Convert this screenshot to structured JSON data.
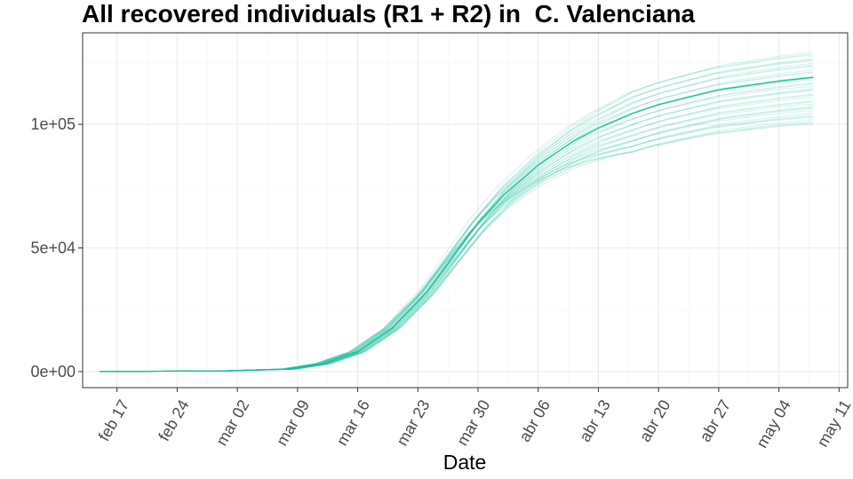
{
  "chart_data": {
    "type": "line",
    "title": "All recovered individuals (R1 + R2) in  C. Valenciana",
    "xlabel": "Date",
    "ylabel": "",
    "x_ticks": [
      "feb 17",
      "feb 24",
      "mar 02",
      "mar 09",
      "mar 16",
      "mar 23",
      "mar 30",
      "abr 06",
      "abr 13",
      "abr 20",
      "abr 27",
      "may 04",
      "may 11"
    ],
    "x_range": [
      "2020-02-13",
      "2020-05-12"
    ],
    "y_ticks": [
      "0e+00",
      "5e+04",
      "1e+05"
    ],
    "ylim": [
      -6500,
      137000
    ],
    "grid": true,
    "line_color": "#1abc9c",
    "series": [
      {
        "role": "central",
        "x": [
          "2020-02-15",
          "2020-03-01",
          "2020-03-08",
          "2020-03-12",
          "2020-03-16",
          "2020-03-20",
          "2020-03-24",
          "2020-03-27",
          "2020-03-30",
          "2020-04-02",
          "2020-04-06",
          "2020-04-10",
          "2020-04-13",
          "2020-04-17",
          "2020-04-20",
          "2020-04-24",
          "2020-04-27",
          "2020-05-01",
          "2020-05-04",
          "2020-05-08"
        ],
        "y": [
          0,
          300,
          1000,
          3200,
          8000,
          17500,
          32000,
          46000,
          60000,
          71500,
          83500,
          93000,
          98500,
          104500,
          108000,
          111500,
          114000,
          116000,
          117500,
          119000
        ]
      }
    ],
    "ensemble": {
      "count": 40,
      "final_value_range": [
        100000,
        130000
      ]
    }
  }
}
